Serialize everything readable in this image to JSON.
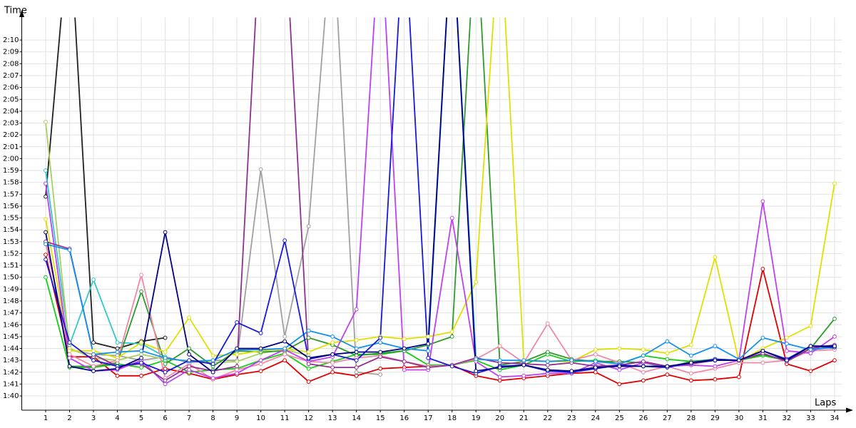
{
  "chart_data": {
    "type": "line",
    "y_label": "Time",
    "x_label": "Laps",
    "x": [
      1,
      2,
      3,
      4,
      5,
      6,
      7,
      8,
      9,
      10,
      11,
      12,
      13,
      14,
      15,
      16,
      17,
      18,
      19,
      20,
      21,
      22,
      23,
      24,
      25,
      26,
      27,
      28,
      29,
      30,
      31,
      32,
      33,
      34
    ],
    "xlim": [
      0,
      34.3
    ],
    "xticks": [
      1,
      2,
      3,
      4,
      5,
      6,
      7,
      8,
      9,
      10,
      11,
      12,
      13,
      14,
      15,
      16,
      17,
      18,
      19,
      20,
      21,
      22,
      23,
      24,
      25,
      26,
      27,
      28,
      29,
      30,
      31,
      32,
      33,
      34
    ],
    "ylim": [
      98.8,
      131.9
    ],
    "yticks": [
      {
        "value": 100,
        "label": "1:40"
      },
      {
        "value": 101,
        "label": "1:41"
      },
      {
        "value": 102,
        "label": "1:42"
      },
      {
        "value": 103,
        "label": "1:43"
      },
      {
        "value": 104,
        "label": "1:44"
      },
      {
        "value": 105,
        "label": "1:45"
      },
      {
        "value": 106,
        "label": "1:46"
      },
      {
        "value": 107,
        "label": "1:47"
      },
      {
        "value": 108,
        "label": "1:48"
      },
      {
        "value": 109,
        "label": "1:49"
      },
      {
        "value": 110,
        "label": "1:50"
      },
      {
        "value": 111,
        "label": "1:51"
      },
      {
        "value": 112,
        "label": "1:52"
      },
      {
        "value": 113,
        "label": "1:53"
      },
      {
        "value": 114,
        "label": "1:54"
      },
      {
        "value": 115,
        "label": "1:55"
      },
      {
        "value": 116,
        "label": "1:56"
      },
      {
        "value": 117,
        "label": "1:57"
      },
      {
        "value": 118,
        "label": "1:58"
      },
      {
        "value": 119,
        "label": "1:59"
      },
      {
        "value": 120,
        "label": "2:00"
      },
      {
        "value": 121,
        "label": "2:01"
      },
      {
        "value": 122,
        "label": "2:02"
      },
      {
        "value": 123,
        "label": "2:03"
      },
      {
        "value": 124,
        "label": "2:04"
      },
      {
        "value": 125,
        "label": "2:05"
      },
      {
        "value": 126,
        "label": "2:06"
      },
      {
        "value": 127,
        "label": "2:07"
      },
      {
        "value": 128,
        "label": "2:08"
      },
      {
        "value": 129,
        "label": "2:09"
      },
      {
        "value": 130,
        "label": "2:10"
      }
    ],
    "grid": true,
    "series": [
      {
        "color": "#202020",
        "values": [
          116.8,
          140,
          104.5,
          104.0,
          104.6,
          104.9,
          null,
          null,
          null,
          null,
          null,
          null,
          null,
          null,
          null,
          null,
          null,
          null,
          null,
          null,
          null,
          null,
          null,
          null,
          null,
          null,
          null,
          null,
          null,
          null,
          null,
          null,
          null,
          null
        ]
      },
      {
        "color": "#a0a0a0",
        "values": [
          112.9,
          103.9,
          103.5,
          103.4,
          103.0,
          103.3,
          102.8,
          103.0,
          103.0,
          119.1,
          105.0,
          114.3,
          140,
          102.0,
          101.8,
          null,
          null,
          null,
          null,
          null,
          null,
          null,
          null,
          null,
          null,
          null,
          null,
          null,
          null,
          null,
          null,
          null,
          null,
          null
        ]
      },
      {
        "color": "#30c8c8",
        "values": [
          119.0,
          104.3,
          109.8,
          104.5,
          104.4,
          103.3,
          null,
          null,
          null,
          null,
          null,
          null,
          null,
          null,
          null,
          null,
          null,
          null,
          null,
          null,
          null,
          null,
          null,
          null,
          null,
          null,
          null,
          null,
          null,
          null,
          null,
          null,
          null,
          null
        ]
      },
      {
        "color": "#a8d060",
        "values": [
          123.1,
          104.0,
          103.2,
          103.0,
          103.5,
          103.1,
          103.0,
          102.8,
          102.9,
          103.6,
          103.9,
          103.4,
          null,
          null,
          null,
          null,
          null,
          null,
          null,
          null,
          null,
          null,
          null,
          null,
          null,
          null,
          null,
          null,
          null,
          null,
          null,
          null,
          null,
          null
        ]
      },
      {
        "color": "#e00000",
        "values": [
          111.9,
          103.3,
          103.3,
          101.7,
          101.7,
          102.3,
          101.9,
          101.4,
          101.8,
          102.1,
          103.0,
          101.2,
          102.0,
          101.7,
          102.3,
          102.4,
          102.5,
          102.6,
          101.7,
          101.3,
          101.5,
          101.7,
          101.9,
          102.0,
          101.0,
          101.3,
          101.8,
          101.3,
          101.4,
          101.6,
          110.7,
          102.7,
          102.1,
          103.0
        ]
      },
      {
        "color": "#10d010",
        "values": [
          110.0,
          102.4,
          102.4,
          102.7,
          102.4,
          103.0,
          102.0,
          102.2,
          102.3,
          103.0,
          103.6,
          102.3,
          102.9,
          103.5,
          103.5,
          103.8,
          102.6,
          102.6,
          103.0,
          102.2,
          102.6,
          103.5,
          102.9,
          103.0,
          102.7,
          103.4,
          103.1,
          102.9,
          103.1,
          103.0,
          103.4,
          103.0,
          104.2,
          104.0
        ]
      },
      {
        "color": "#2e9a2e",
        "values": [
          null,
          102.5,
          102.5,
          102.8,
          108.8,
          102.7,
          104.0,
          102.5,
          103.8,
          103.7,
          103.8,
          104.9,
          104.3,
          103.4,
          103.6,
          103.8,
          104.3,
          105.0,
          140,
          102.6,
          102.9,
          103.7,
          103.1,
          102.9,
          102.9,
          102.8,
          102.4,
          102.9,
          103.0,
          103.0,
          103.5,
          103.0,
          104.0,
          106.5
        ]
      },
      {
        "color": "#e0e000",
        "values": [
          114.9,
          103.8,
          103.8,
          103.2,
          104.5,
          103.7,
          106.6,
          103.4,
          103.5,
          103.8,
          104.0,
          103.7,
          104.5,
          104.7,
          105.0,
          104.8,
          105.0,
          105.4,
          109.6,
          140,
          103.0,
          102.9,
          102.9,
          103.9,
          104.0,
          103.9,
          103.6,
          104.3,
          111.7,
          102.9,
          104.0,
          104.9,
          105.9,
          117.9
        ]
      },
      {
        "color": "#f088a8",
        "values": [
          113.0,
          103.5,
          102.5,
          103.0,
          110.2,
          101.5,
          102.7,
          101.4,
          102.2,
          102.7,
          103.5,
          102.9,
          102.8,
          103.2,
          103.4,
          102.9,
          102.5,
          102.6,
          103.1,
          104.2,
          102.8,
          106.1,
          103.0,
          103.5,
          102.8,
          102.0,
          102.5,
          101.9,
          102.3,
          102.8,
          102.8,
          103.0,
          103.8,
          103.9
        ]
      },
      {
        "color": "#c040f0",
        "values": [
          117.9,
          103.2,
          102.1,
          102.2,
          103.0,
          101.0,
          102.2,
          101.5,
          101.9,
          103.0,
          103.9,
          102.9,
          103.3,
          107.3,
          140,
          102.2,
          102.2,
          115.0,
          102.9,
          101.6,
          101.7,
          101.9,
          101.9,
          102.8,
          102.2,
          102.8,
          102.5,
          102.6,
          102.5,
          103.0,
          116.4,
          103.8,
          103.6,
          105.0
        ]
      },
      {
        "color": "#903090",
        "values": [
          113.0,
          112.4,
          103.5,
          102.5,
          102.7,
          101.3,
          102.5,
          102.1,
          102.5,
          140,
          140,
          102.7,
          102.4,
          102.4,
          103.3,
          102.9,
          102.4,
          102.6,
          103.2,
          102.8,
          102.7,
          102.6,
          102.8,
          102.5,
          102.6,
          102.9,
          102.5,
          102.7,
          103.0,
          103.0,
          103.6,
          102.9,
          104.0,
          104.3
        ]
      },
      {
        "color": "#1090f0",
        "values": [
          112.8,
          112.3,
          103.5,
          103.7,
          103.8,
          103.2,
          102.9,
          103.0,
          103.9,
          103.9,
          104.0,
          105.5,
          105.0,
          104.0,
          104.5,
          104.0,
          103.8,
          140,
          103.1,
          103.0,
          103.0,
          102.9,
          103.0,
          102.9,
          102.7,
          103.4,
          104.6,
          103.4,
          104.2,
          103.1,
          104.9,
          104.4,
          103.9,
          104.1
        ]
      },
      {
        "color": "#1818d8",
        "values": [
          111.5,
          104.5,
          103.0,
          102.5,
          102.8,
          102.0,
          103.0,
          102.7,
          106.2,
          105.3,
          113.1,
          103.1,
          103.5,
          103.0,
          104.9,
          140,
          103.2,
          102.5,
          101.9,
          102.5,
          102.6,
          102.1,
          102.0,
          102.3,
          102.6,
          102.5,
          102.4,
          102.8,
          103.1,
          103.0,
          103.8,
          103.1,
          104.2,
          104.1
        ]
      },
      {
        "color": "#000080",
        "values": [
          113.8,
          102.5,
          102.1,
          102.3,
          103.2,
          113.8,
          103.5,
          102.0,
          104.0,
          104.0,
          104.6,
          103.2,
          103.5,
          103.7,
          103.7,
          104.0,
          104.4,
          140,
          102.1,
          102.4,
          102.6,
          102.2,
          102.1,
          102.4,
          102.5,
          102.5,
          102.5,
          102.8,
          103.0,
          103.0,
          103.8,
          103.0,
          104.2,
          104.2
        ]
      }
    ]
  }
}
